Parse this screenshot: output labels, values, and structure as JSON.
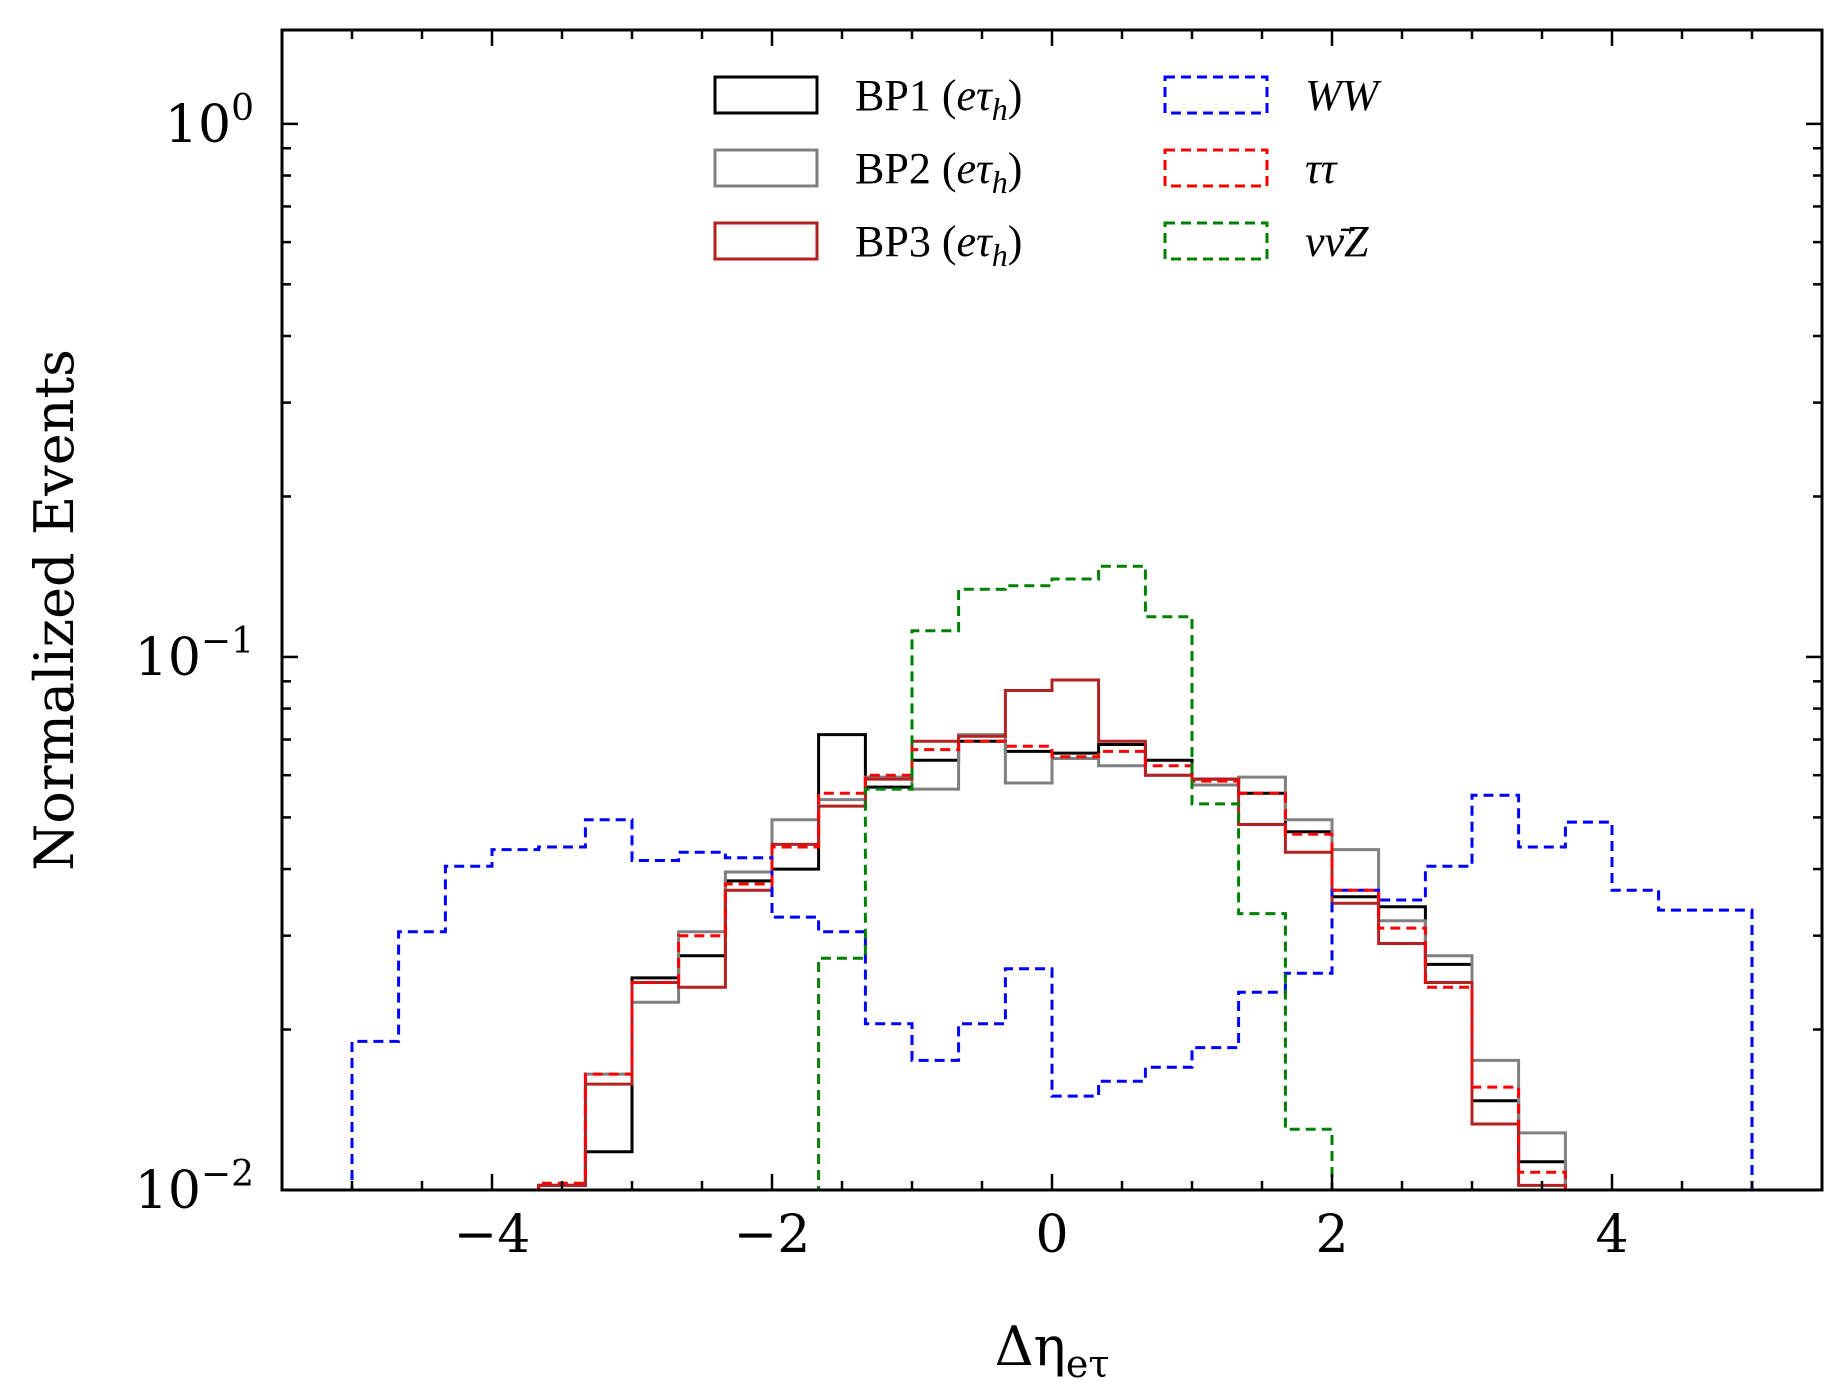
{
  "chart_data": {
    "type": "histogram",
    "title": "",
    "xlabel_main": "Δη",
    "xlabel_sub": "eτ",
    "ylabel": "Normalized Events",
    "xlim": [
      -5.5,
      5.5
    ],
    "ylim": [
      0.01,
      1.5
    ],
    "yscale": "log",
    "x_ticks": [
      {
        "value": -4,
        "label": "−4"
      },
      {
        "value": -2,
        "label": "−2"
      },
      {
        "value": 0,
        "label": "0"
      },
      {
        "value": 2,
        "label": "2"
      },
      {
        "value": 4,
        "label": "4"
      }
    ],
    "y_ticks": [
      {
        "value": 1,
        "base": "10",
        "exp": "0"
      },
      {
        "value": 0.1,
        "base": "10",
        "exp": "−1"
      },
      {
        "value": 0.01,
        "base": "10",
        "exp": "−2"
      }
    ],
    "legend_position": "top-center",
    "legend_items": [
      {
        "series": 0,
        "column": 0,
        "row": 0,
        "parts": [
          "BP1 (",
          "eτ",
          "h",
          ")"
        ]
      },
      {
        "series": 1,
        "column": 0,
        "row": 1,
        "parts": [
          "BP2 (",
          "eτ",
          "h",
          ")"
        ]
      },
      {
        "series": 2,
        "column": 0,
        "row": 2,
        "parts": [
          "BP3 (",
          "eτ",
          "h",
          ")"
        ]
      },
      {
        "series": 3,
        "column": 1,
        "row": 0,
        "parts": [
          "WW",
          "",
          "",
          ""
        ]
      },
      {
        "series": 4,
        "column": 1,
        "row": 1,
        "parts": [
          "ττ",
          "",
          "",
          ""
        ]
      },
      {
        "series": 5,
        "column": 1,
        "row": 2,
        "parts": [
          "νν̄Z",
          "",
          "",
          ""
        ]
      }
    ],
    "bin_edges": [
      -5.0,
      -4.667,
      -4.333,
      -4.0,
      -3.667,
      -3.333,
      -3.0,
      -2.667,
      -2.333,
      -2.0,
      -1.667,
      -1.333,
      -1.0,
      -0.667,
      -0.333,
      0.0,
      0.333,
      0.667,
      1.0,
      1.333,
      1.667,
      2.0,
      2.333,
      2.667,
      3.0,
      3.333,
      3.667,
      4.0,
      4.333,
      4.667,
      5.0
    ],
    "series": [
      {
        "color": "#000000",
        "dashed": false,
        "values": [
          null,
          null,
          null,
          null,
          0.0102,
          0.0118,
          0.025,
          0.0275,
          0.038,
          0.04,
          0.0715,
          0.057,
          0.064,
          0.0695,
          0.0665,
          0.066,
          0.0685,
          0.064,
          0.059,
          0.0555,
          0.047,
          0.0355,
          0.034,
          0.0265,
          0.0147,
          0.0113,
          null,
          null,
          null,
          null
        ]
      },
      {
        "color": "#808080",
        "dashed": false,
        "values": [
          null,
          null,
          null,
          null,
          0.0102,
          0.0165,
          0.0225,
          0.0305,
          0.0395,
          0.0495,
          0.054,
          0.0595,
          0.0565,
          0.0715,
          0.058,
          0.0645,
          0.0625,
          0.06,
          0.0575,
          0.0595,
          0.0495,
          0.0435,
          0.032,
          0.0275,
          0.0175,
          0.0128,
          null,
          null,
          null,
          null
        ]
      },
      {
        "color": "#b22222",
        "dashed": false,
        "values": [
          null,
          null,
          null,
          null,
          0.0102,
          0.0158,
          0.0245,
          0.024,
          0.0365,
          0.0445,
          0.0525,
          0.059,
          0.0695,
          0.071,
          0.0865,
          0.0905,
          0.0695,
          0.06,
          0.059,
          0.0485,
          0.043,
          0.0345,
          0.029,
          0.0245,
          0.0133,
          0.0102,
          null,
          null,
          null,
          null
        ]
      },
      {
        "color": "#0000ff",
        "dashed": true,
        "values": [
          0.019,
          0.0305,
          0.0405,
          0.0435,
          0.044,
          0.0495,
          0.0415,
          0.043,
          0.042,
          0.0325,
          0.0305,
          0.0205,
          0.0175,
          0.0205,
          0.026,
          0.015,
          0.016,
          0.017,
          0.0185,
          0.0235,
          0.0255,
          0.0365,
          0.035,
          0.0405,
          0.055,
          0.044,
          0.049,
          0.0365,
          0.0335,
          0.0335
        ]
      },
      {
        "color": "#ff0000",
        "dashed": true,
        "values": [
          null,
          null,
          null,
          null,
          0.0103,
          0.0165,
          0.0245,
          0.03,
          0.0375,
          0.044,
          0.0555,
          0.06,
          0.067,
          0.0695,
          0.068,
          0.065,
          0.0665,
          0.0625,
          0.0585,
          0.0555,
          0.0465,
          0.0365,
          0.031,
          0.024,
          0.0156,
          0.0108,
          null,
          null,
          null,
          null
        ]
      },
      {
        "color": "#008000",
        "dashed": true,
        "values": [
          null,
          null,
          null,
          null,
          null,
          null,
          null,
          null,
          null,
          null,
          0.0272,
          0.0565,
          0.112,
          0.134,
          0.136,
          0.14,
          0.148,
          0.119,
          0.053,
          0.033,
          0.013,
          null,
          null,
          null,
          null,
          null,
          null,
          null,
          null,
          null
        ]
      }
    ]
  }
}
